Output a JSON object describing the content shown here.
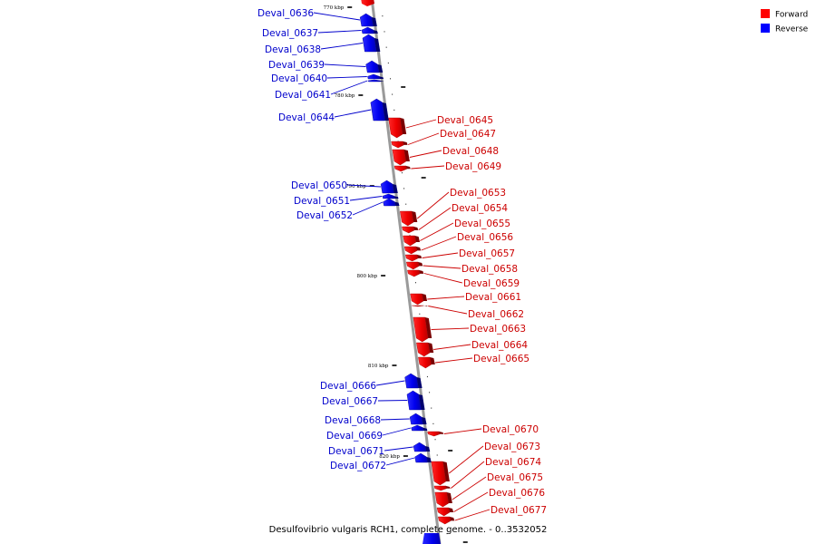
{
  "legend": [
    {
      "label": "Forward",
      "color": "#ff0000"
    },
    {
      "label": "Reverse",
      "color": "#0000ff"
    }
  ],
  "caption": "Desulfovibrio vulgaris RCH1, complete genome. - 0..3532052",
  "ticks": [
    {
      "kbp": 770,
      "label": "770 kbp"
    },
    {
      "kbp": 780,
      "label": "780 kbp"
    },
    {
      "kbp": 790,
      "label": "790 kbp"
    },
    {
      "kbp": 800,
      "label": "800 kbp"
    },
    {
      "kbp": 810,
      "label": "810 kbp"
    },
    {
      "kbp": 820,
      "label": "820 kbp"
    }
  ],
  "genes": [
    {
      "name": "Deval_0636",
      "strand": "reverse"
    },
    {
      "name": "Deval_0637",
      "strand": "reverse"
    },
    {
      "name": "Deval_0638",
      "strand": "reverse"
    },
    {
      "name": "Deval_0639",
      "strand": "reverse"
    },
    {
      "name": "Deval_0640",
      "strand": "reverse"
    },
    {
      "name": "Deval_0641",
      "strand": "reverse"
    },
    {
      "name": "Deval_0644",
      "strand": "reverse"
    },
    {
      "name": "Deval_0645",
      "strand": "forward"
    },
    {
      "name": "Deval_0647",
      "strand": "forward"
    },
    {
      "name": "Deval_0648",
      "strand": "forward"
    },
    {
      "name": "Deval_0649",
      "strand": "forward"
    },
    {
      "name": "Deval_0650",
      "strand": "reverse"
    },
    {
      "name": "Deval_0651",
      "strand": "reverse"
    },
    {
      "name": "Deval_0652",
      "strand": "reverse"
    },
    {
      "name": "Deval_0653",
      "strand": "forward"
    },
    {
      "name": "Deval_0654",
      "strand": "forward"
    },
    {
      "name": "Deval_0655",
      "strand": "forward"
    },
    {
      "name": "Deval_0656",
      "strand": "forward"
    },
    {
      "name": "Deval_0657",
      "strand": "forward"
    },
    {
      "name": "Deval_0658",
      "strand": "forward"
    },
    {
      "name": "Deval_0659",
      "strand": "forward"
    },
    {
      "name": "Deval_0661",
      "strand": "forward"
    },
    {
      "name": "Deval_0662",
      "strand": "forward"
    },
    {
      "name": "Deval_0663",
      "strand": "forward"
    },
    {
      "name": "Deval_0664",
      "strand": "forward"
    },
    {
      "name": "Deval_0665",
      "strand": "forward"
    },
    {
      "name": "Deval_0666",
      "strand": "reverse"
    },
    {
      "name": "Deval_0667",
      "strand": "reverse"
    },
    {
      "name": "Deval_0668",
      "strand": "reverse"
    },
    {
      "name": "Deval_0669",
      "strand": "reverse"
    },
    {
      "name": "Deval_0670",
      "strand": "forward"
    },
    {
      "name": "Deval_0671",
      "strand": "reverse"
    },
    {
      "name": "Deval_0672",
      "strand": "reverse"
    },
    {
      "name": "Deval_0673",
      "strand": "forward"
    },
    {
      "name": "Deval_0674",
      "strand": "forward"
    },
    {
      "name": "Deval_0675",
      "strand": "forward"
    },
    {
      "name": "Deval_0676",
      "strand": "forward"
    },
    {
      "name": "Deval_0677",
      "strand": "forward"
    }
  ]
}
